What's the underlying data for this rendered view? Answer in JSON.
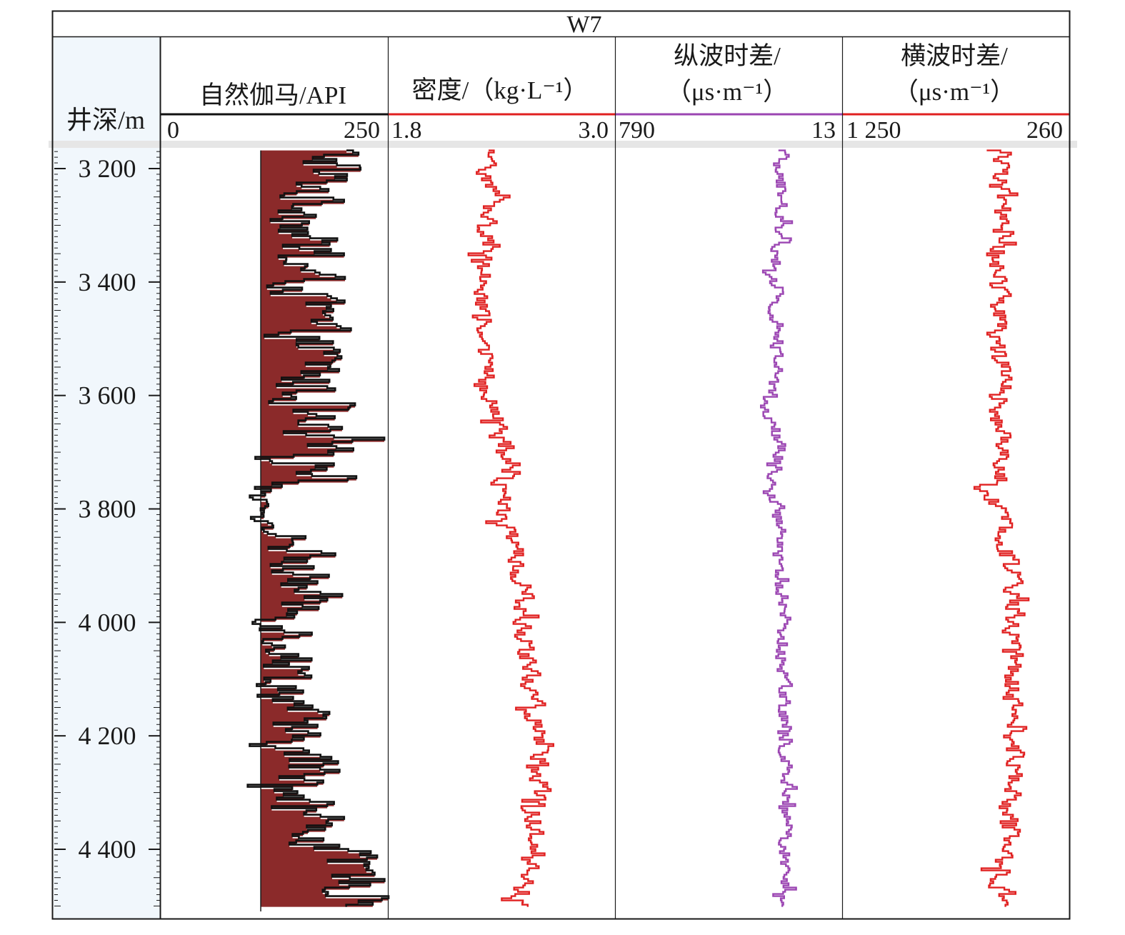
{
  "chart_data": {
    "type": "line",
    "well_name": "W7",
    "depth_axis": {
      "label": "井深/m",
      "range": [
        3160,
        4510
      ],
      "ticks": [
        3200,
        3400,
        3600,
        3800,
        4000,
        4200,
        4400
      ],
      "tick_labels": [
        "3 200",
        "3 400",
        "3 600",
        "3 800",
        "4 000",
        "4 200",
        "4 400"
      ]
    },
    "tracks": [
      {
        "key": "gr",
        "title_lines": [
          "自然伽马/API"
        ],
        "scale_left": 0,
        "scale_right": 250,
        "scale_left_label": "0",
        "scale_right_label": "250",
        "line_color": "#111111",
        "fill_color": "#8b2a2a",
        "header_line_color": "#111111",
        "baseline_value": 110,
        "stations": [
          {
            "depth": 3165,
            "value": 190
          },
          {
            "depth": 3200,
            "value": 185
          },
          {
            "depth": 3250,
            "value": 170
          },
          {
            "depth": 3300,
            "value": 165
          },
          {
            "depth": 3350,
            "value": 150
          },
          {
            "depth": 3400,
            "value": 160
          },
          {
            "depth": 3450,
            "value": 165
          },
          {
            "depth": 3500,
            "value": 160
          },
          {
            "depth": 3550,
            "value": 175
          },
          {
            "depth": 3600,
            "value": 160
          },
          {
            "depth": 3650,
            "value": 155
          },
          {
            "depth": 3700,
            "value": 170
          },
          {
            "depth": 3750,
            "value": 190
          },
          {
            "depth": 3772,
            "value": 110
          },
          {
            "depth": 3800,
            "value": 117
          },
          {
            "depth": 3840,
            "value": 115
          },
          {
            "depth": 3860,
            "value": 150
          },
          {
            "depth": 3900,
            "value": 150
          },
          {
            "depth": 3950,
            "value": 160
          },
          {
            "depth": 4000,
            "value": 145
          },
          {
            "depth": 4050,
            "value": 150
          },
          {
            "depth": 4100,
            "value": 140
          },
          {
            "depth": 4150,
            "value": 150
          },
          {
            "depth": 4200,
            "value": 130
          },
          {
            "depth": 4250,
            "value": 160
          },
          {
            "depth": 4300,
            "value": 165
          },
          {
            "depth": 4350,
            "value": 170
          },
          {
            "depth": 4400,
            "value": 185
          },
          {
            "depth": 4450,
            "value": 215
          },
          {
            "depth": 4500,
            "value": 225
          }
        ]
      },
      {
        "key": "den",
        "title_lines": [
          "密度/（kg·L⁻¹）"
        ],
        "scale_left": 1.8,
        "scale_right": 3.0,
        "scale_left_label": "1.8",
        "scale_right_label": "3.0",
        "line_color": "#e02020",
        "header_line_color": "#e02020",
        "stations": [
          {
            "depth": 3165,
            "value": 2.3
          },
          {
            "depth": 3200,
            "value": 2.32
          },
          {
            "depth": 3250,
            "value": 2.36
          },
          {
            "depth": 3300,
            "value": 2.33
          },
          {
            "depth": 3350,
            "value": 2.3
          },
          {
            "depth": 3400,
            "value": 2.32
          },
          {
            "depth": 3450,
            "value": 2.3
          },
          {
            "depth": 3500,
            "value": 2.32
          },
          {
            "depth": 3550,
            "value": 2.31
          },
          {
            "depth": 3600,
            "value": 2.33
          },
          {
            "depth": 3650,
            "value": 2.38
          },
          {
            "depth": 3700,
            "value": 2.4
          },
          {
            "depth": 3750,
            "value": 2.39
          },
          {
            "depth": 3800,
            "value": 2.4
          },
          {
            "depth": 3850,
            "value": 2.45
          },
          {
            "depth": 3900,
            "value": 2.48
          },
          {
            "depth": 3950,
            "value": 2.52
          },
          {
            "depth": 4000,
            "value": 2.5
          },
          {
            "depth": 4050,
            "value": 2.52
          },
          {
            "depth": 4100,
            "value": 2.55
          },
          {
            "depth": 4150,
            "value": 2.57
          },
          {
            "depth": 4200,
            "value": 2.6
          },
          {
            "depth": 4250,
            "value": 2.6
          },
          {
            "depth": 4300,
            "value": 2.6
          },
          {
            "depth": 4350,
            "value": 2.58
          },
          {
            "depth": 4400,
            "value": 2.56
          },
          {
            "depth": 4450,
            "value": 2.52
          },
          {
            "depth": 4500,
            "value": 2.5
          }
        ]
      },
      {
        "key": "dtc",
        "title_lines": [
          "纵波时差/",
          "（μs·m⁻¹）"
        ],
        "scale_left": 790,
        "scale_right": 13,
        "scale_left_label": "790",
        "scale_right_label": "13",
        "line_color": "#9b45b2",
        "header_line_color": "#9b45b2",
        "stations": [
          {
            "depth": 3165,
            "value": 215
          },
          {
            "depth": 3200,
            "value": 225
          },
          {
            "depth": 3250,
            "value": 220
          },
          {
            "depth": 3300,
            "value": 230
          },
          {
            "depth": 3350,
            "value": 240
          },
          {
            "depth": 3400,
            "value": 240
          },
          {
            "depth": 3450,
            "value": 240
          },
          {
            "depth": 3500,
            "value": 235
          },
          {
            "depth": 3550,
            "value": 240
          },
          {
            "depth": 3600,
            "value": 250
          },
          {
            "depth": 3632,
            "value": 265
          },
          {
            "depth": 3650,
            "value": 245
          },
          {
            "depth": 3700,
            "value": 225
          },
          {
            "depth": 3750,
            "value": 245
          },
          {
            "depth": 3770,
            "value": 270
          },
          {
            "depth": 3800,
            "value": 235
          },
          {
            "depth": 3850,
            "value": 230
          },
          {
            "depth": 3900,
            "value": 225
          },
          {
            "depth": 3950,
            "value": 215
          },
          {
            "depth": 4000,
            "value": 210
          },
          {
            "depth": 4050,
            "value": 215
          },
          {
            "depth": 4100,
            "value": 212
          },
          {
            "depth": 4150,
            "value": 210
          },
          {
            "depth": 4200,
            "value": 205
          },
          {
            "depth": 4250,
            "value": 205
          },
          {
            "depth": 4300,
            "value": 200
          },
          {
            "depth": 4350,
            "value": 200
          },
          {
            "depth": 4400,
            "value": 205
          },
          {
            "depth": 4450,
            "value": 210
          },
          {
            "depth": 4500,
            "value": 215
          }
        ]
      },
      {
        "key": "dts",
        "title_lines": [
          "横波时差/",
          "（μs·m⁻¹）"
        ],
        "scale_left": 1250,
        "scale_right": 260,
        "scale_left_label": "1 250",
        "scale_right_label": "260",
        "line_color": "#e02020",
        "header_line_color": "#e02020",
        "stations": [
          {
            "depth": 3165,
            "value": 540
          },
          {
            "depth": 3200,
            "value": 560
          },
          {
            "depth": 3250,
            "value": 560
          },
          {
            "depth": 3300,
            "value": 560
          },
          {
            "depth": 3350,
            "value": 570
          },
          {
            "depth": 3400,
            "value": 575
          },
          {
            "depth": 3450,
            "value": 570
          },
          {
            "depth": 3500,
            "value": 580
          },
          {
            "depth": 3550,
            "value": 560
          },
          {
            "depth": 3600,
            "value": 570
          },
          {
            "depth": 3632,
            "value": 610
          },
          {
            "depth": 3650,
            "value": 560
          },
          {
            "depth": 3700,
            "value": 530
          },
          {
            "depth": 3750,
            "value": 560
          },
          {
            "depth": 3770,
            "value": 660
          },
          {
            "depth": 3800,
            "value": 560
          },
          {
            "depth": 3850,
            "value": 550
          },
          {
            "depth": 3900,
            "value": 520
          },
          {
            "depth": 3950,
            "value": 500
          },
          {
            "depth": 4000,
            "value": 500
          },
          {
            "depth": 4050,
            "value": 500
          },
          {
            "depth": 4100,
            "value": 510
          },
          {
            "depth": 4150,
            "value": 510
          },
          {
            "depth": 4200,
            "value": 500
          },
          {
            "depth": 4250,
            "value": 500
          },
          {
            "depth": 4300,
            "value": 510
          },
          {
            "depth": 4350,
            "value": 510
          },
          {
            "depth": 4400,
            "value": 540
          },
          {
            "depth": 4450,
            "value": 560
          },
          {
            "depth": 4500,
            "value": 575
          }
        ]
      }
    ]
  }
}
